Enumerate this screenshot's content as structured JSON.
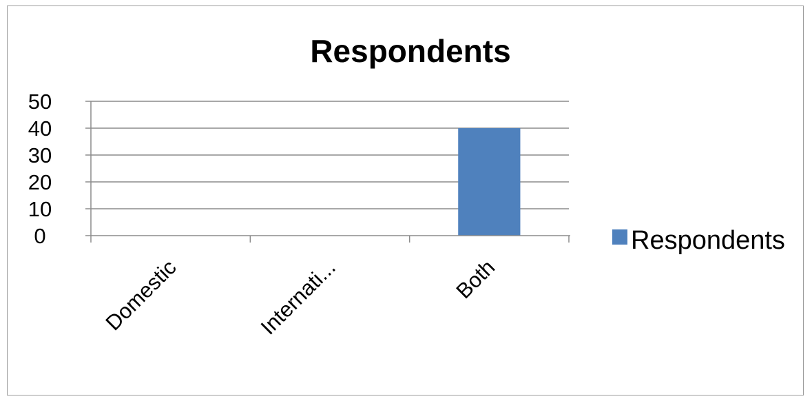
{
  "chart_data": {
    "type": "bar",
    "title": "Respondents",
    "categories": [
      "Domestic",
      "Internati...",
      "Both"
    ],
    "series": [
      {
        "name": "Respondents",
        "values": [
          0,
          0,
          40
        ],
        "color": "#4f81bd"
      }
    ],
    "ylim": [
      0,
      50
    ],
    "yticks": [
      "0",
      "10",
      "20",
      "30",
      "40",
      "50"
    ],
    "grid": true,
    "legend": "right"
  }
}
